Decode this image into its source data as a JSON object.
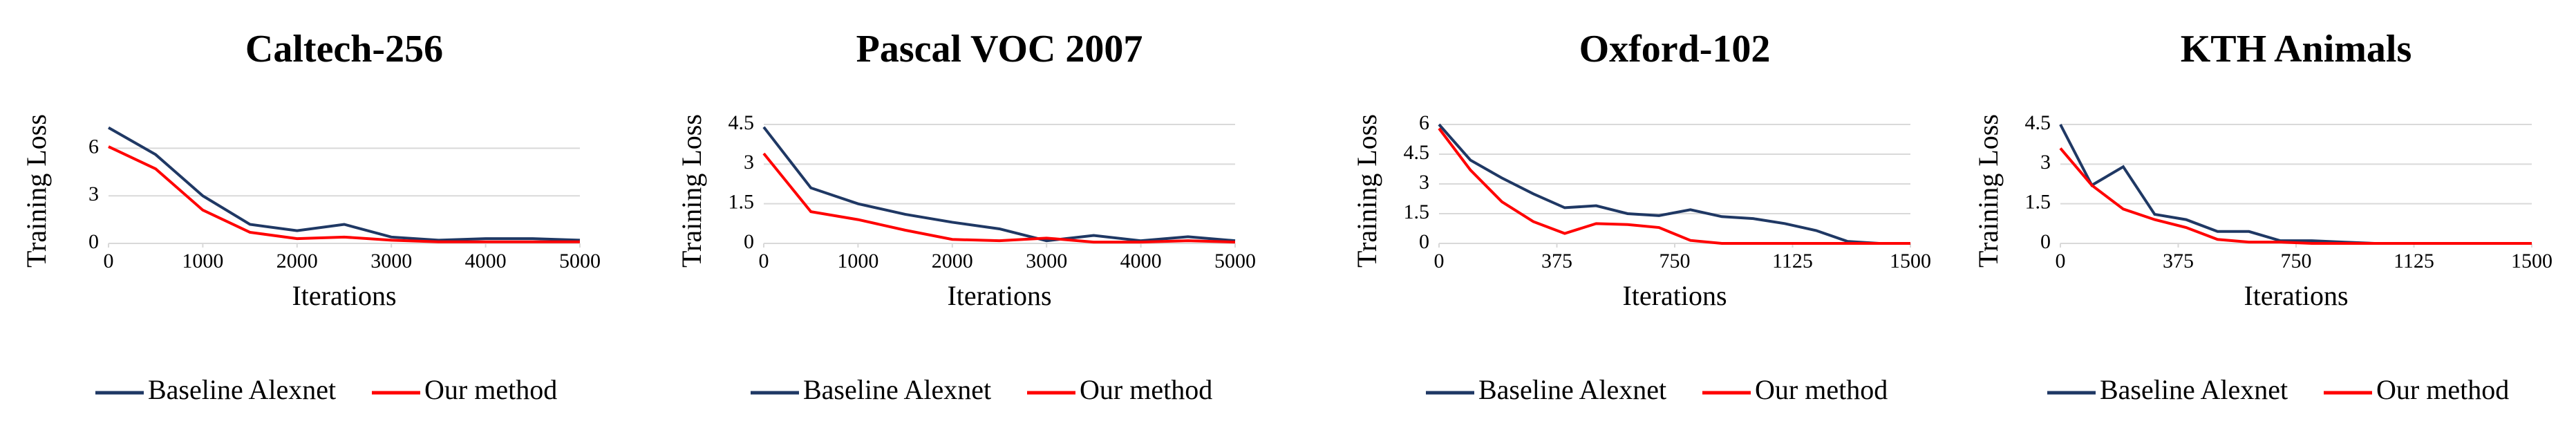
{
  "chart_data": [
    {
      "type": "line",
      "title": "Caltech-256",
      "x_label": "Iterations",
      "y_label": "Training Loss",
      "x": [
        0,
        500,
        1000,
        1500,
        2000,
        2500,
        3000,
        3500,
        4000,
        4500,
        5000
      ],
      "xlim": [
        0,
        5000
      ],
      "xticks": [
        0,
        1000,
        2000,
        3000,
        4000,
        5000
      ],
      "ylim": [
        0,
        7.5
      ],
      "yticks": [
        0,
        3,
        6
      ],
      "grid": true,
      "series": [
        {
          "name": "Baseline Alexnet",
          "color": "#1f3864",
          "values": [
            7.3,
            5.6,
            3.0,
            1.2,
            0.8,
            1.2,
            0.4,
            0.2,
            0.3,
            0.3,
            0.2
          ]
        },
        {
          "name": "Our method",
          "color": "#ff0000",
          "values": [
            6.1,
            4.7,
            2.1,
            0.7,
            0.3,
            0.4,
            0.2,
            0.1,
            0.1,
            0.1,
            0.1
          ]
        }
      ]
    },
    {
      "type": "line",
      "title": "Pascal VOC 2007",
      "x_label": "Iterations",
      "y_label": "Training Loss",
      "x": [
        0,
        500,
        1000,
        1500,
        2000,
        2500,
        3000,
        3500,
        4000,
        4500,
        5000
      ],
      "xlim": [
        0,
        5000
      ],
      "xticks": [
        0,
        1000,
        2000,
        3000,
        4000,
        5000
      ],
      "ylim": [
        0,
        4.5
      ],
      "yticks": [
        0,
        1.5,
        3,
        4.5
      ],
      "grid": true,
      "series": [
        {
          "name": "Baseline Alexnet",
          "color": "#1f3864",
          "values": [
            4.4,
            2.1,
            1.5,
            1.1,
            0.8,
            0.55,
            0.1,
            0.3,
            0.1,
            0.25,
            0.1
          ]
        },
        {
          "name": "Our method",
          "color": "#ff0000",
          "values": [
            3.4,
            1.2,
            0.9,
            0.5,
            0.15,
            0.1,
            0.2,
            0.05,
            0.05,
            0.1,
            0.05
          ]
        }
      ]
    },
    {
      "type": "line",
      "title": "Oxford-102",
      "x_label": "Iterations",
      "y_label": "Training Loss",
      "x": [
        0,
        100,
        200,
        300,
        400,
        500,
        600,
        700,
        800,
        900,
        1000,
        1100,
        1200,
        1300,
        1400,
        1500
      ],
      "xlim": [
        0,
        1500
      ],
      "xticks": [
        0,
        375,
        750,
        1125,
        1500
      ],
      "ylim": [
        0,
        6
      ],
      "yticks": [
        0,
        1.5,
        3,
        4.5,
        6
      ],
      "grid": true,
      "series": [
        {
          "name": "Baseline Alexnet",
          "color": "#1f3864",
          "values": [
            6.0,
            4.2,
            3.3,
            2.5,
            1.8,
            1.9,
            1.5,
            1.4,
            1.7,
            1.35,
            1.25,
            1.0,
            0.65,
            0.1,
            0,
            0
          ]
        },
        {
          "name": "Our method",
          "color": "#ff0000",
          "values": [
            5.8,
            3.7,
            2.1,
            1.1,
            0.5,
            1.0,
            0.95,
            0.8,
            0.15,
            0,
            0,
            0,
            0,
            0,
            0,
            0
          ]
        }
      ]
    },
    {
      "type": "line",
      "title": "KTH Animals",
      "x_label": "Iterations",
      "y_label": "Training Loss",
      "x": [
        0,
        100,
        200,
        300,
        400,
        500,
        600,
        700,
        800,
        900,
        1000,
        1100,
        1200,
        1300,
        1400,
        1500
      ],
      "xlim": [
        0,
        1500
      ],
      "xticks": [
        0,
        375,
        750,
        1125,
        1500
      ],
      "ylim": [
        0,
        4.5
      ],
      "yticks": [
        0,
        1.5,
        3,
        4.5
      ],
      "grid": true,
      "series": [
        {
          "name": "Baseline Alexnet",
          "color": "#1f3864",
          "values": [
            4.5,
            2.2,
            2.9,
            1.1,
            0.9,
            0.45,
            0.45,
            0.1,
            0.1,
            0.05,
            0,
            0,
            0,
            0,
            0,
            0
          ]
        },
        {
          "name": "Our method",
          "color": "#ff0000",
          "values": [
            3.6,
            2.2,
            1.3,
            0.9,
            0.6,
            0.15,
            0.05,
            0.05,
            0,
            0,
            0,
            0,
            0,
            0,
            0,
            0
          ]
        }
      ]
    }
  ]
}
